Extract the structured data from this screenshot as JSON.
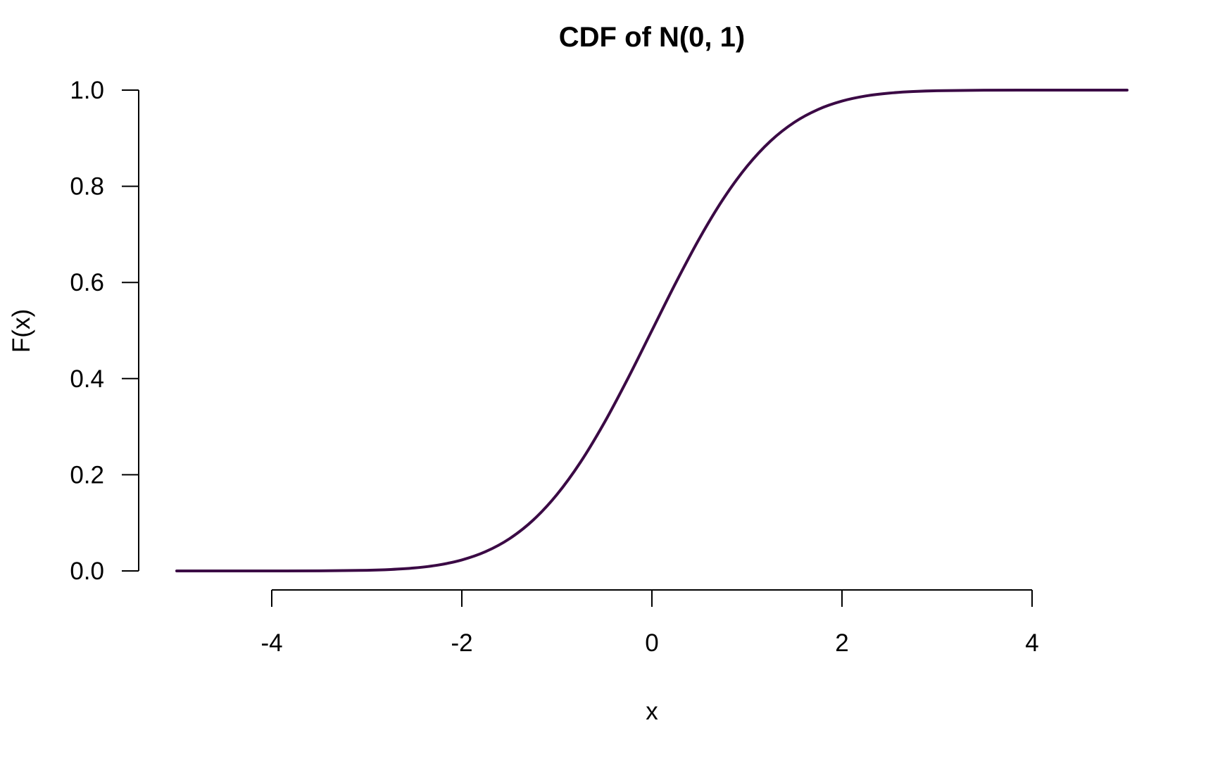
{
  "chart_data": {
    "type": "line",
    "title": "CDF of N(0, 1)",
    "xlabel": "x",
    "ylabel": "F(x)",
    "xlim": [
      -5,
      5
    ],
    "ylim": [
      0,
      1
    ],
    "x_ticks": [
      -4,
      -2,
      0,
      2,
      4
    ],
    "x_tick_labels": [
      "-4",
      "-2",
      "0",
      "2",
      "4"
    ],
    "y_ticks": [
      0,
      0.2,
      0.4,
      0.6,
      0.8,
      1
    ],
    "y_tick_labels": [
      "0.0",
      "0.2",
      "0.4",
      "0.6",
      "0.8",
      "1.0"
    ],
    "grid": false,
    "series": [
      {
        "color": "#3b0a45",
        "x": [
          -5,
          -4.5,
          -4,
          -3.5,
          -3,
          -2.75,
          -2.5,
          -2.25,
          -2,
          -1.75,
          -1.5,
          -1.25,
          -1,
          -0.75,
          -0.5,
          -0.25,
          0,
          0.25,
          0.5,
          0.75,
          1,
          1.25,
          1.5,
          1.75,
          2,
          2.25,
          2.5,
          2.75,
          3,
          3.5,
          4,
          4.5,
          5
        ],
        "y": [
          3e-07,
          3.4e-06,
          3.17e-05,
          0.000233,
          0.00135,
          0.00298,
          0.00621,
          0.0122,
          0.0228,
          0.0401,
          0.0668,
          0.1056,
          0.1587,
          0.2266,
          0.3085,
          0.4013,
          0.5,
          0.5987,
          0.6915,
          0.7734,
          0.8413,
          0.8944,
          0.9332,
          0.9599,
          0.9772,
          0.9878,
          0.9938,
          0.997,
          0.99865,
          0.99977,
          0.99997,
          0.999997,
          0.9999997
        ]
      }
    ]
  }
}
